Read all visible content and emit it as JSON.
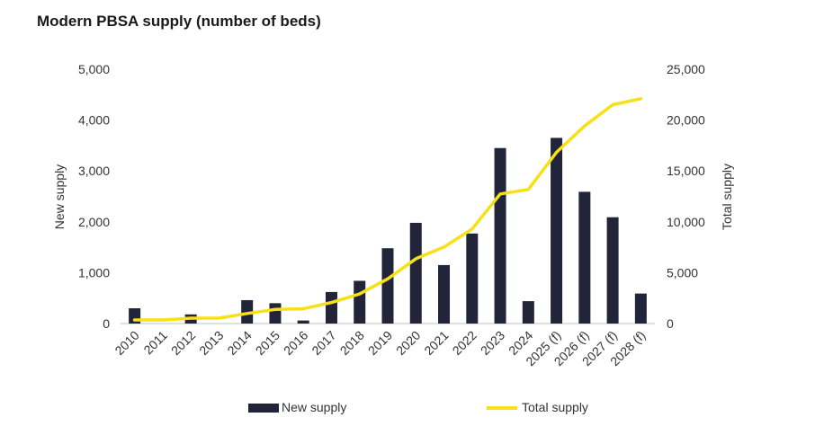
{
  "chart_data": {
    "type": "bar+line",
    "title": "Modern PBSA supply (number of beds)",
    "categories": [
      "2010",
      "2011",
      "2012",
      "2013",
      "2014",
      "2015",
      "2016",
      "2017",
      "2018",
      "2019",
      "2020",
      "2021",
      "2022",
      "2023",
      "2024",
      "2025 (f)",
      "2026 (f)",
      "2027 (f)",
      "2028 (f)"
    ],
    "series": [
      {
        "name": "New supply",
        "type": "bar",
        "axis": "left",
        "color": "#22253a",
        "values": [
          300,
          0,
          180,
          0,
          460,
          400,
          60,
          620,
          840,
          1480,
          1980,
          1150,
          1770,
          3450,
          440,
          3650,
          2590,
          2090,
          590
        ]
      },
      {
        "name": "Total supply",
        "type": "line",
        "axis": "right",
        "color": "#f7e017",
        "values": [
          350,
          350,
          530,
          530,
          990,
          1390,
          1450,
          2070,
          2910,
          4390,
          6370,
          7520,
          9290,
          12740,
          13180,
          16830,
          19420,
          21510,
          22100
        ]
      }
    ],
    "ylabel": "New supply",
    "y2label": "Total supply",
    "ylim": [
      0,
      5000
    ],
    "y2lim": [
      0,
      25000
    ],
    "yticks": [
      "0",
      "1,000",
      "2,000",
      "3,000",
      "4,000",
      "5,000"
    ],
    "y2ticks": [
      "0",
      "5,000",
      "10,000",
      "15,000",
      "20,000",
      "25,000"
    ],
    "grid": false,
    "legend": "bottom"
  }
}
